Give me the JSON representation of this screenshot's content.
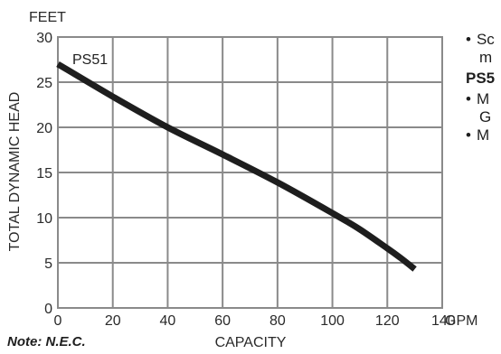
{
  "chart_data": {
    "type": "line",
    "xlabel": "CAPACITY",
    "ylabel": "TOTAL DYNAMIC HEAD",
    "x_unit": "GPM",
    "y_unit": "FEET",
    "xlim": [
      0,
      140
    ],
    "ylim": [
      0,
      30
    ],
    "x_ticks": [
      0,
      20,
      40,
      60,
      80,
      100,
      120,
      140
    ],
    "y_ticks": [
      0,
      5,
      10,
      15,
      20,
      25,
      30
    ],
    "grid": true,
    "series": [
      {
        "name": "PS51",
        "x": [
          0,
          20,
          40,
          60,
          80,
          100,
          110,
          120,
          125,
          130
        ],
        "y": [
          27,
          23.4,
          20,
          17,
          13.9,
          10.5,
          8.7,
          6.6,
          5.5,
          4.3
        ]
      }
    ]
  },
  "side_text": {
    "line1": "Sc",
    "line2": "m",
    "line3": "PS5",
    "line4": "M",
    "line5": "G",
    "line6": "M",
    "bullet": "•"
  },
  "note": "Note: N.E.C."
}
